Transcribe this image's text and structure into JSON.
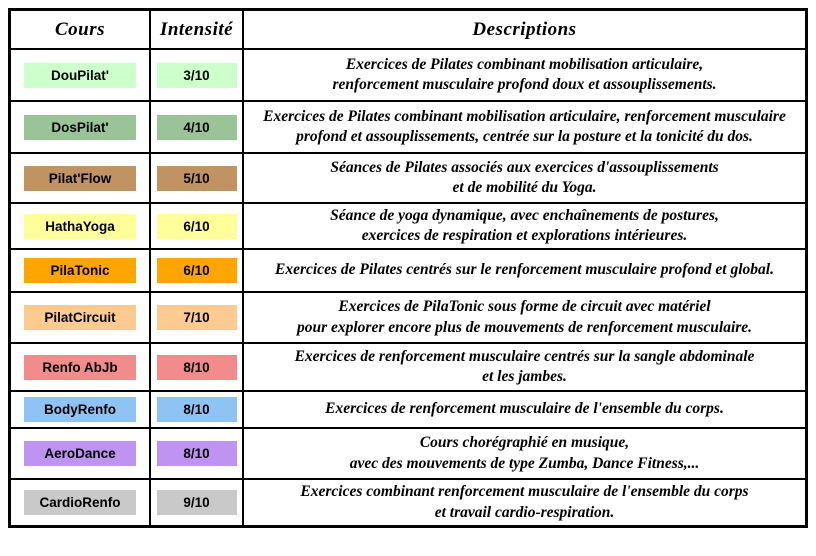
{
  "table": {
    "headers": {
      "course": "Cours",
      "intensity": "Intensité",
      "description": "Descriptions"
    },
    "border_color": "#000000",
    "rows": [
      {
        "course": "DouPilat'",
        "color": "#CCFFCC",
        "intensity": "3/10",
        "description": "Exercices de Pilates combinant mobilisation articulaire,\nrenforcement musculaire profond doux et assouplissements."
      },
      {
        "course": "DosPilat'",
        "color": "#9AC498",
        "intensity": "4/10",
        "description": "Exercices de Pilates combinant mobilisation articulaire, renforcement musculaire\nprofond et assouplissements, centrée sur la posture et la tonicité du dos."
      },
      {
        "course": "Pilat'Flow",
        "color": "#C19262",
        "intensity": "5/10",
        "description": "Séances de Pilates associés aux exercices d'assouplissements\net de mobilité du Yoga."
      },
      {
        "course": "HathaYoga",
        "color": "#FFFF99",
        "intensity": "6/10",
        "description": "Séance de yoga dynamique, avec enchaînements de postures,\nexercices de respiration et explorations intérieures."
      },
      {
        "course": "PilaTonic",
        "color": "#FFA500",
        "intensity": "6/10",
        "description": "Exercices de Pilates centrés sur le renforcement musculaire profond et global."
      },
      {
        "course": "PilatCircuit",
        "color": "#FDCB90",
        "intensity": "7/10",
        "description": "Exercices de PilaTonic sous forme de circuit avec matériel\npour explorer encore plus de mouvements de renforcement musculaire."
      },
      {
        "course": "Renfo AbJb",
        "color": "#F28B8B",
        "intensity": "8/10",
        "description": "Exercices de renforcement musculaire centrés sur la sangle abdominale\net les jambes."
      },
      {
        "course": "BodyRenfo",
        "color": "#8FC3F4",
        "intensity": "8/10",
        "description": "Exercices de renforcement musculaire de l'ensemble du corps."
      },
      {
        "course": "AeroDance",
        "color": "#BE93F2",
        "intensity": "8/10",
        "description": "Cours chorégraphié en musique,\navec des mouvements de type Zumba, Dance Fitness,..."
      },
      {
        "course": "CardioRenfo",
        "color": "#C9C9C9",
        "intensity": "9/10",
        "description": "Exercices combinant renforcement musculaire de l'ensemble du corps\net travail cardio-respiration."
      }
    ]
  }
}
